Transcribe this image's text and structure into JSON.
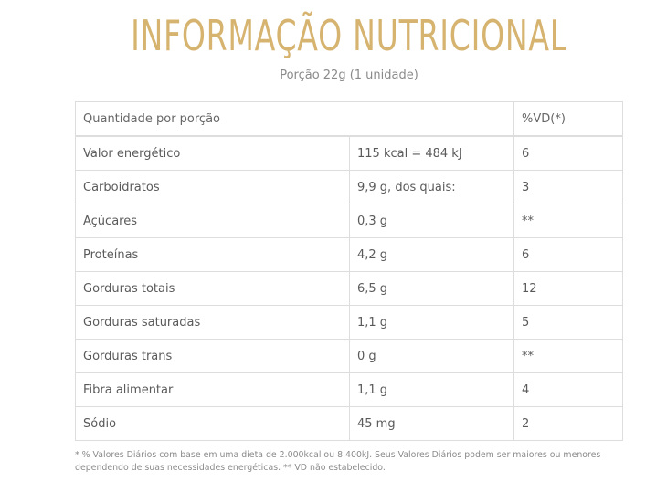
{
  "header": {
    "title": "INFORMAÇÃO NUTRICIONAL",
    "portion": "Porção 22g (1 unidade)"
  },
  "table": {
    "columns": [
      "Quantidade por porção",
      "%VD(*)"
    ],
    "rows": [
      {
        "nutrient": "Valor energético",
        "amount": "115 kcal = 484 kJ",
        "dv": "6"
      },
      {
        "nutrient": "Carboidratos",
        "amount": "9,9 g, dos quais:",
        "dv": "3"
      },
      {
        "nutrient": "Açúcares",
        "amount": "0,3 g",
        "dv": "**"
      },
      {
        "nutrient": "Proteínas",
        "amount": "4,2 g",
        "dv": "6"
      },
      {
        "nutrient": "Gorduras totais",
        "amount": "6,5 g",
        "dv": "12"
      },
      {
        "nutrient": "Gorduras saturadas",
        "amount": "1,1 g",
        "dv": "5"
      },
      {
        "nutrient": "Gorduras trans",
        "amount": "0 g",
        "dv": "**"
      },
      {
        "nutrient": "Fibra alimentar",
        "amount": "1,1 g",
        "dv": "4"
      },
      {
        "nutrient": "Sódio",
        "amount": "45 mg",
        "dv": "2"
      }
    ]
  },
  "footnote": "* % Valores Diários com base em uma dieta de 2.000kcal ou 8.400kJ. Seus Valores Diários podem ser maiores ou menores dependendo de suas necessidades energéticas. ** VD não estabelecido.",
  "colors": {
    "title": "#d6b470",
    "border": "#dddddd",
    "text": "#5a5a5a"
  }
}
